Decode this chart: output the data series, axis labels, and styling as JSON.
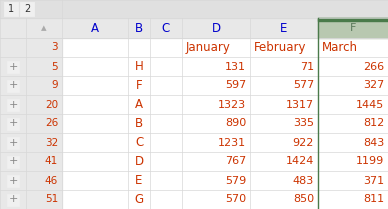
{
  "row_numbers": [
    3,
    5,
    9,
    20,
    26,
    32,
    41,
    46,
    51
  ],
  "b_values": [
    "",
    "H",
    "F",
    "A",
    "B",
    "C",
    "D",
    "E",
    "G"
  ],
  "d_values": [
    "January",
    131,
    597,
    1323,
    890,
    1231,
    767,
    579,
    570
  ],
  "e_values": [
    "February",
    71,
    577,
    1317,
    335,
    922,
    1424,
    483,
    850
  ],
  "f_values": [
    "March",
    266,
    327,
    1445,
    812,
    843,
    1199,
    371,
    811
  ],
  "col_names": [
    "A",
    "B",
    "C",
    "D",
    "E",
    "F"
  ],
  "text_color_normal": "#cc3300",
  "text_color_header_blue": "#0000cc",
  "text_color_header_green": "#5b7a5b",
  "grid_color": "#d8d8d8",
  "row_num_color": "#cc3300",
  "btn_text_color": "#666666",
  "left_panel_bg": "#e8e8e8",
  "col_header_bg": "#e8e8e8",
  "col_f_header_bg": "#a8b8a0",
  "col_f_stripe": "#4a7a4a",
  "table_bg": "#ffffff",
  "btn_box_color": "#c0c0c0",
  "level_btn_bg": "#f0f0f0"
}
